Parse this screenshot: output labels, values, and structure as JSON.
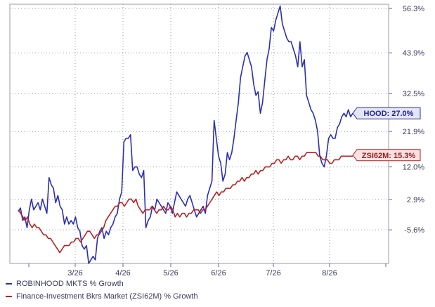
{
  "chart_data": {
    "type": "line",
    "title": "",
    "xlabel": "",
    "ylabel": "",
    "x_tick_labels": [
      "3/26",
      "4/26",
      "5/26",
      "6/26",
      "7/26",
      "8/26"
    ],
    "y_tick_labels": [
      "56.3%",
      "43.9%",
      "32.5%",
      "21.9%",
      "12.0%",
      "2.9%",
      "-5.6%"
    ],
    "y_ticks": [
      56.3,
      43.9,
      32.5,
      21.9,
      12.0,
      2.9,
      -5.6
    ],
    "ylim": [
      -15,
      57.5
    ],
    "grid": true,
    "legend_position": "bottom-left",
    "series": [
      {
        "name": "ROBINHOOD MKTS % Growth",
        "color": "#2b2fb5",
        "end_label": "HOOD: 27.0%",
        "values": [
          -0.5,
          0.5,
          -3,
          -2,
          -5,
          0,
          3,
          0,
          1,
          2,
          0,
          3,
          1,
          -1,
          9,
          7,
          6,
          2,
          4,
          1,
          0,
          -4,
          -2,
          -4,
          -3,
          -4,
          -2,
          -5,
          -6,
          -10,
          -11,
          -10,
          -15,
          -14,
          -13,
          -14,
          -8,
          -6,
          -5,
          -8,
          -6,
          -7,
          -5,
          -4,
          -2,
          -1,
          3,
          5,
          19,
          20,
          20,
          21,
          11,
          12,
          12,
          10,
          9,
          11,
          -5,
          -3,
          -2,
          1,
          0,
          3,
          2,
          1,
          0,
          -1,
          2,
          1,
          -1,
          2,
          5,
          4,
          3,
          2,
          1,
          3,
          4,
          2,
          0,
          -2,
          -1,
          0,
          1,
          -1,
          4,
          6,
          8,
          25,
          20,
          15,
          13,
          8,
          10,
          16,
          14,
          16,
          20,
          25,
          30,
          37,
          40,
          43,
          44,
          42,
          40,
          35,
          32,
          33,
          27,
          30,
          36,
          42,
          45,
          51,
          50,
          53,
          55,
          57,
          52,
          50,
          48,
          47,
          47,
          45,
          43,
          40,
          47,
          40,
          42,
          32,
          30,
          28,
          27,
          25,
          22,
          15,
          13,
          12,
          15,
          20,
          21,
          20,
          20,
          23,
          24,
          26,
          27,
          26,
          28,
          26,
          27
        ],
        "last_value": 27.0
      },
      {
        "name": "Finance-Investment Bkrs Market (ZSI62M) % Growth",
        "color": "#b82121",
        "end_label": "ZSI62M: 15.3%",
        "values": [
          0,
          -1,
          -2,
          -3,
          -2,
          -4,
          -5,
          -4,
          -5,
          -5,
          -6,
          -7,
          -7,
          -8,
          -8,
          -9,
          -10,
          -11,
          -12,
          -11,
          -10,
          -10,
          -10,
          -9,
          -9,
          -8,
          -8,
          -9,
          -8,
          -7,
          -6,
          -6,
          -7,
          -8,
          -7,
          -7,
          -6,
          -5,
          -3,
          -2,
          -1,
          0,
          1,
          1,
          2,
          2,
          1,
          2,
          3,
          3,
          2,
          3,
          1,
          0,
          -1,
          0,
          0,
          0,
          1,
          0,
          -1,
          0,
          0,
          1,
          0,
          0,
          1,
          0,
          -2,
          -1,
          -2,
          -1,
          -1,
          -2,
          -1,
          -1,
          0,
          0,
          0,
          -1,
          0,
          0,
          1,
          2,
          3,
          4,
          5,
          4,
          5,
          5,
          6,
          6,
          6,
          7,
          7,
          8,
          8,
          9,
          8,
          9,
          9,
          10,
          10,
          11,
          10,
          11,
          11,
          12,
          12,
          12,
          13,
          13,
          14,
          14,
          13,
          14,
          14,
          15,
          14,
          14,
          15,
          15,
          14,
          15,
          15,
          16,
          16,
          16,
          16,
          16,
          15,
          15,
          14,
          14,
          14,
          13,
          13,
          14,
          14,
          14,
          15,
          15,
          15,
          15,
          15,
          15
        ],
        "last_value": 15.3
      }
    ]
  }
}
